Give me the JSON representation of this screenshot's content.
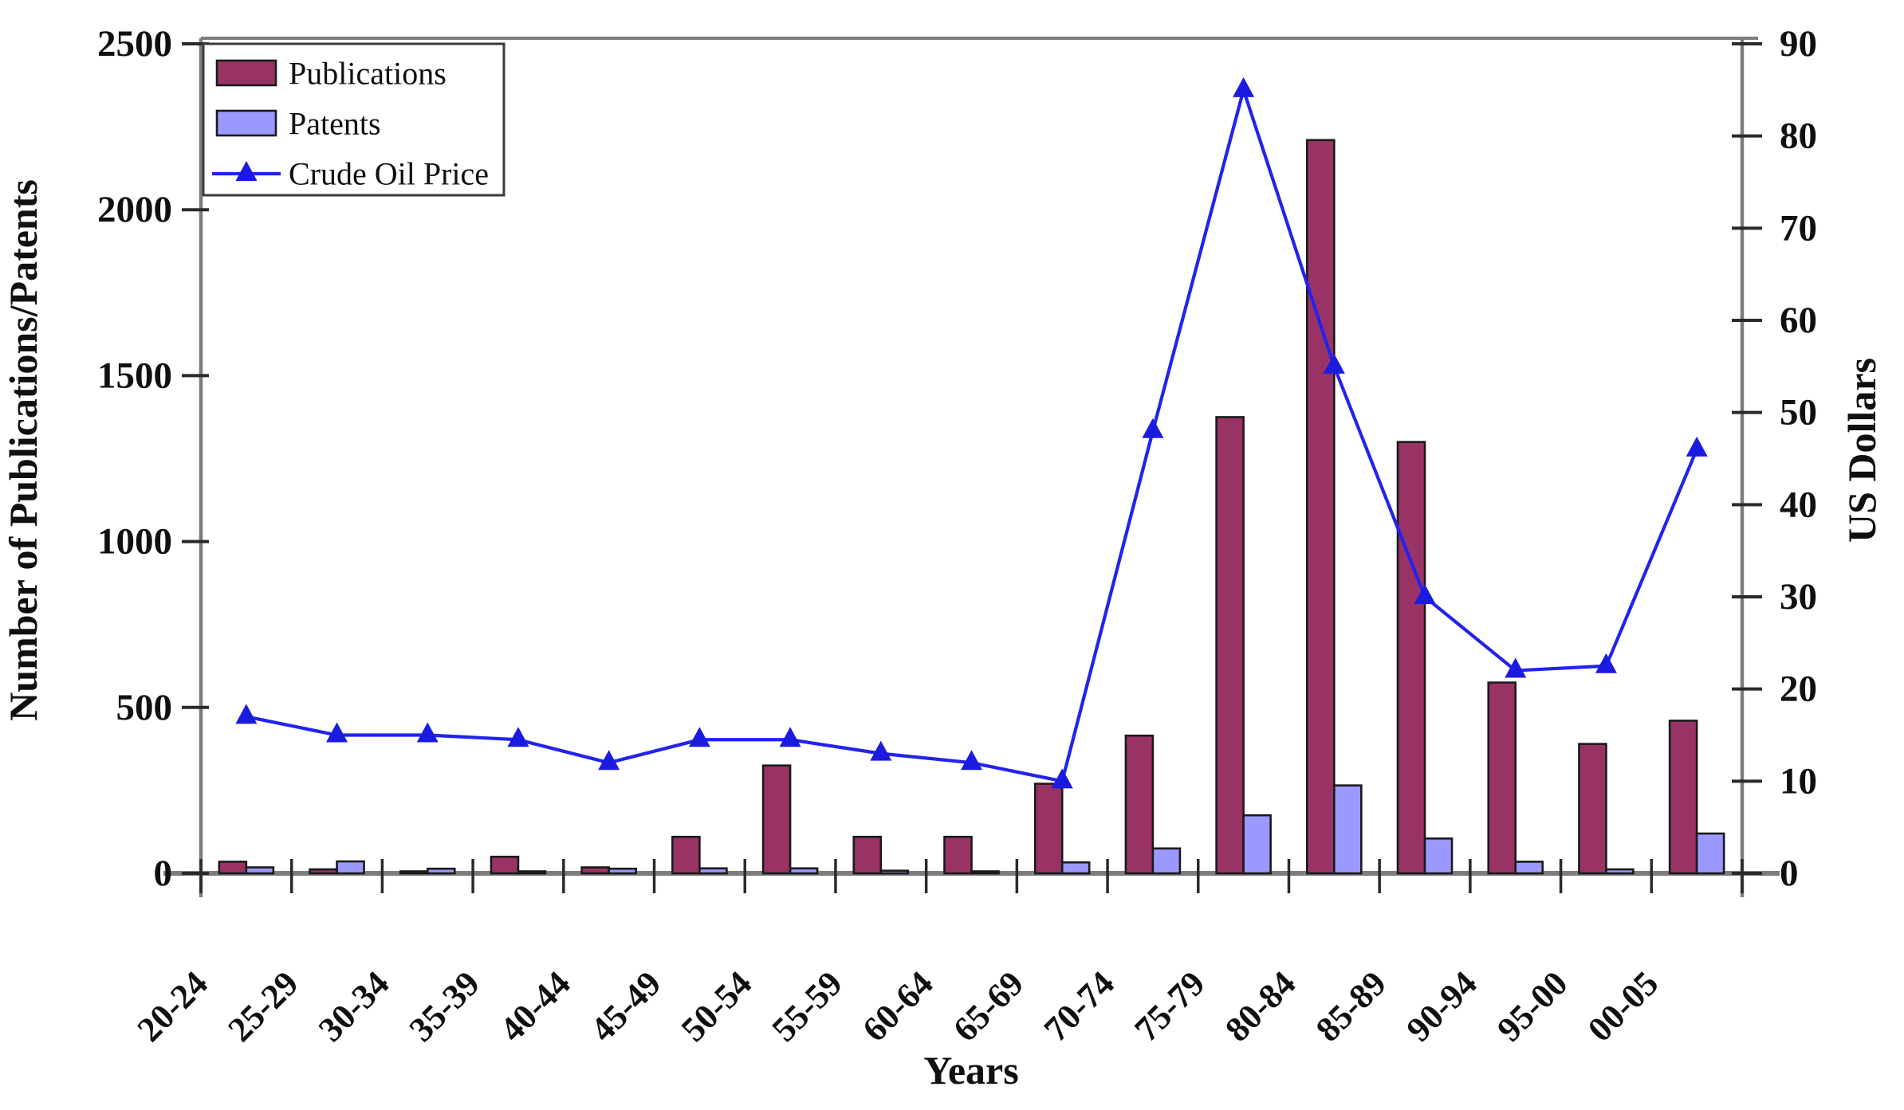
{
  "chart_data": {
    "type": "bar+line",
    "title": "",
    "categories": [
      "20-24",
      "25-29",
      "30-34",
      "35-39",
      "40-44",
      "45-49",
      "50-54",
      "55-59",
      "60-64",
      "65-69",
      "70-74",
      "75-79",
      "80-84",
      "85-89",
      "90-94",
      "95-00",
      "00-05"
    ],
    "series": [
      {
        "name": "Publications",
        "type": "bar",
        "axis": "left",
        "color": "#993366",
        "values": [
          35,
          12,
          6,
          50,
          18,
          110,
          325,
          110,
          110,
          270,
          415,
          1375,
          2210,
          1300,
          575,
          390,
          460
        ]
      },
      {
        "name": "Patents",
        "type": "bar",
        "axis": "left",
        "color": "#9999FF",
        "values": [
          18,
          36,
          14,
          6,
          14,
          15,
          15,
          8,
          6,
          33,
          75,
          175,
          265,
          105,
          35,
          12,
          120
        ]
      },
      {
        "name": "Crude Oil Price",
        "type": "line",
        "axis": "right",
        "color": "#2323EE",
        "marker": "triangle",
        "values": [
          17,
          15,
          15,
          14.5,
          12,
          14.5,
          14.5,
          13,
          12,
          10,
          48,
          85,
          55,
          30,
          22,
          22.5,
          46
        ]
      }
    ],
    "left_axis": {
      "title": "Number of Publications/Patents",
      "min": 0,
      "max": 2500,
      "step": 500,
      "tick_labels": [
        "0",
        "500",
        "1000",
        "1500",
        "2000",
        "2500"
      ]
    },
    "right_axis": {
      "title": "US Dollars",
      "min": 0,
      "max": 90,
      "step": 10,
      "tick_labels": [
        "0",
        "10",
        "20",
        "30",
        "40",
        "50",
        "60",
        "70",
        "80",
        "90"
      ]
    },
    "x_axis": {
      "title": "Years"
    },
    "legend": {
      "position": "top-left",
      "entries": [
        "Publications",
        "Patents",
        "Crude Oil Price"
      ]
    },
    "grid": false,
    "background": "#ffffff",
    "colors": {
      "publications": "#993366",
      "patents": "#9999FF",
      "oil_line": "#2323EE",
      "axis": "#7d7d7d",
      "tick": "#2a2a2a",
      "bar_outline": "#1a1a1a"
    }
  }
}
